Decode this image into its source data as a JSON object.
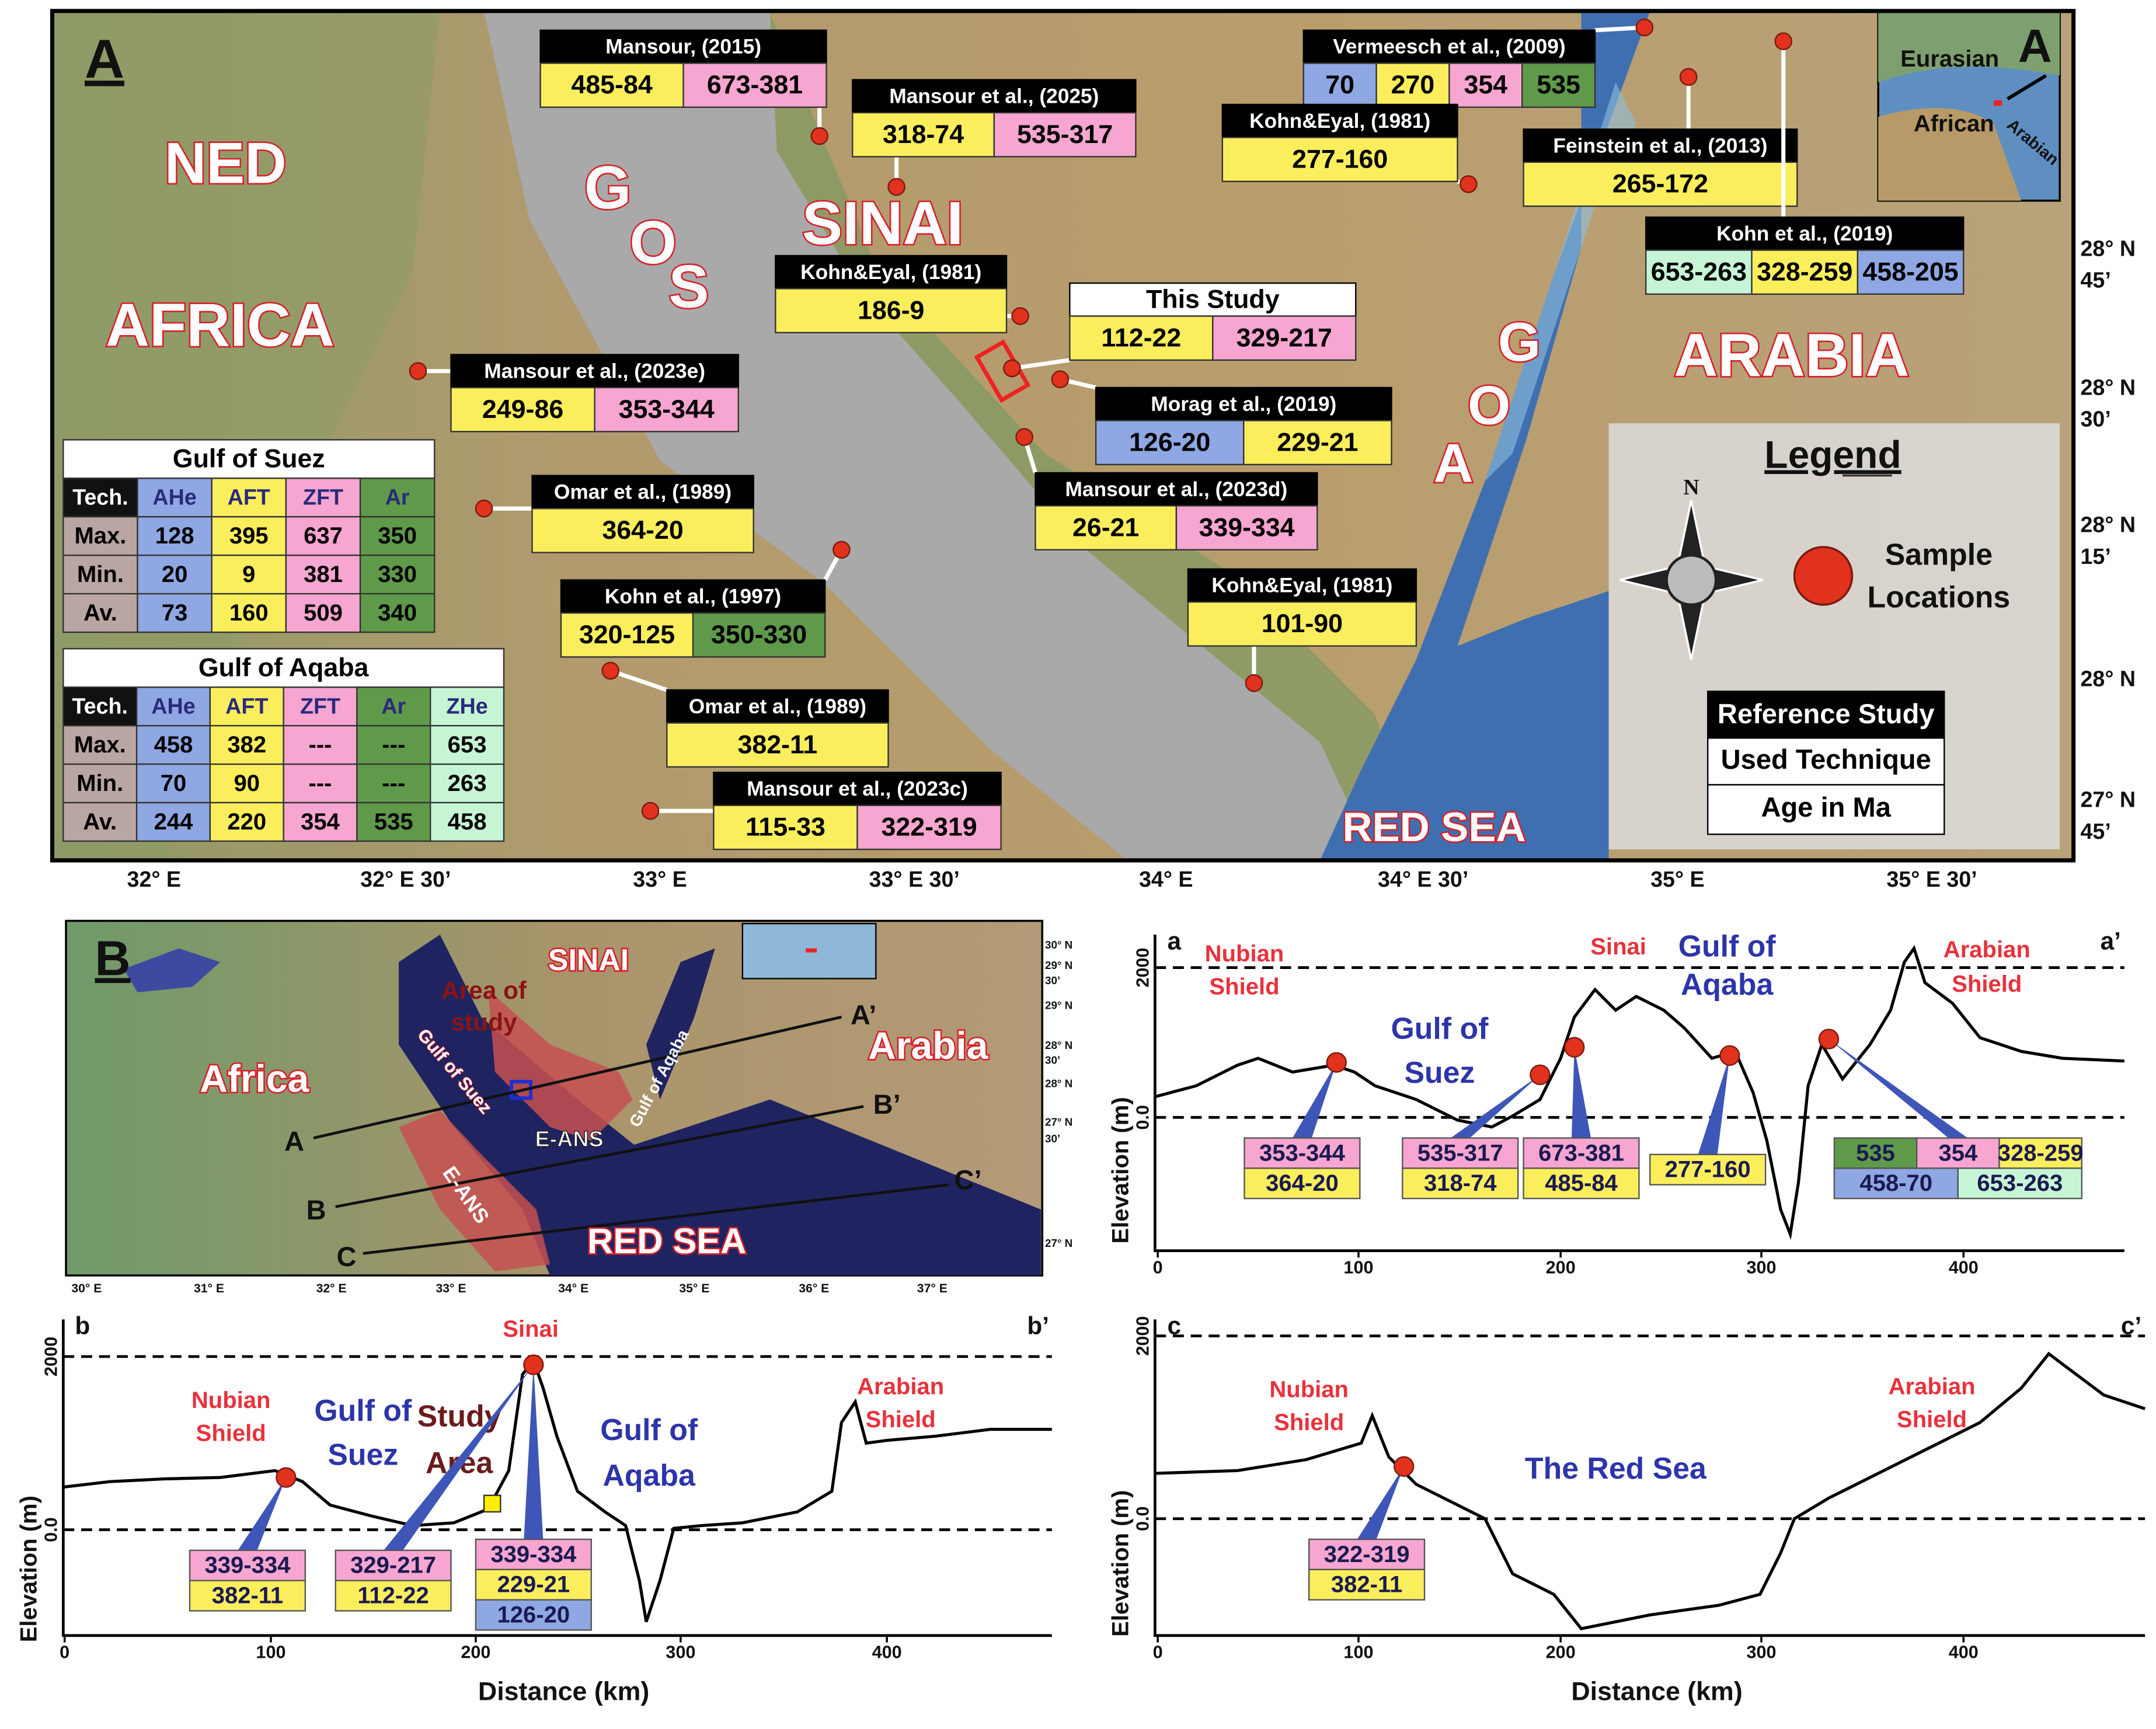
{
  "panel_a": {
    "label": "A",
    "regions": [
      "NED",
      "AFRICA",
      "SINAI",
      "ARABIA",
      "RED SEA"
    ],
    "gos": [
      "G",
      "O",
      "S"
    ],
    "aog": [
      "A",
      "O",
      "G"
    ],
    "callouts": [
      {
        "ref": "Mansour, (2015)",
        "ages": [
          {
            "text": "485-84",
            "color": "#fbee5d"
          },
          {
            "text": "673-381",
            "color": "#f6a6d0"
          }
        ]
      },
      {
        "ref": "Mansour et al., (2025)",
        "ages": [
          {
            "text": "318-74",
            "color": "#fbee5d"
          },
          {
            "text": "535-317",
            "color": "#f6a6d0"
          }
        ]
      },
      {
        "ref": "Vermeesch et al., (2009)",
        "ages": [
          {
            "text": "70",
            "color": "#8fa7e2"
          },
          {
            "text": "270",
            "color": "#fbee5d"
          },
          {
            "text": "354",
            "color": "#f6a6d0"
          },
          {
            "text": "535",
            "color": "#5f9a4a"
          }
        ]
      },
      {
        "ref": "Kohn&Eyal, (1981)",
        "ages": [
          {
            "text": "277-160",
            "color": "#fbee5d"
          }
        ]
      },
      {
        "ref": "Feinstein et al., (2013)",
        "ages": [
          {
            "text": "265-172",
            "color": "#fbee5d"
          }
        ]
      },
      {
        "ref": "Kohn et al., (2019)",
        "ages": [
          {
            "text": "653-263",
            "color": "#c6f5d6"
          },
          {
            "text": "328-259",
            "color": "#fbee5d"
          },
          {
            "text": "458-205",
            "color": "#8fa7e2"
          }
        ]
      },
      {
        "ref": "Kohn&Eyal, (1981)",
        "ages": [
          {
            "text": "186-9",
            "color": "#fbee5d"
          }
        ]
      },
      {
        "ref": "This Study",
        "ages": [
          {
            "text": "112-22",
            "color": "#fbee5d"
          },
          {
            "text": "329-217",
            "color": "#f6a6d0"
          }
        ]
      },
      {
        "ref": "Mansour et al., (2023e)",
        "ages": [
          {
            "text": "249-86",
            "color": "#fbee5d"
          },
          {
            "text": "353-344",
            "color": "#f6a6d0"
          }
        ]
      },
      {
        "ref": "Morag et al., (2019)",
        "ages": [
          {
            "text": "126-20",
            "color": "#8fa7e2"
          },
          {
            "text": "229-21",
            "color": "#fbee5d"
          }
        ]
      },
      {
        "ref": "Omar et al., (1989)",
        "ages": [
          {
            "text": "364-20",
            "color": "#fbee5d"
          }
        ]
      },
      {
        "ref": "Mansour et al., (2023d)",
        "ages": [
          {
            "text": "26-21",
            "color": "#fbee5d"
          },
          {
            "text": "339-334",
            "color": "#f6a6d0"
          }
        ]
      },
      {
        "ref": "Kohn et al., (1997)",
        "ages": [
          {
            "text": "320-125",
            "color": "#fbee5d"
          },
          {
            "text": "350-330",
            "color": "#5f9a4a"
          }
        ]
      },
      {
        "ref": "Kohn&Eyal, (1981)",
        "ages": [
          {
            "text": "101-90",
            "color": "#fbee5d"
          }
        ]
      },
      {
        "ref": "Omar et al., (1989)",
        "ages": [
          {
            "text": "382-11",
            "color": "#fbee5d"
          }
        ]
      },
      {
        "ref": "Mansour et al., (2023c)",
        "ages": [
          {
            "text": "115-33",
            "color": "#fbee5d"
          },
          {
            "text": "322-319",
            "color": "#f6a6d0"
          }
        ]
      }
    ],
    "tables": [
      {
        "title": "Gulf of Suez",
        "columns": [
          "Tech.",
          "AHe",
          "AFT",
          "ZFT",
          "Ar"
        ],
        "column_colors": [
          "#b9a6a2",
          "#8fa7e2",
          "#fbee5d",
          "#f6a6d0",
          "#5f9a4a"
        ],
        "rows": [
          [
            "Max.",
            "128",
            "395",
            "637",
            "350"
          ],
          [
            "Min.",
            "20",
            "9",
            "381",
            "330"
          ],
          [
            "Av.",
            "73",
            "160",
            "509",
            "340"
          ]
        ]
      },
      {
        "title": "Gulf of Aqaba",
        "columns": [
          "Tech.",
          "AHe",
          "AFT",
          "ZFT",
          "Ar",
          "ZHe"
        ],
        "column_colors": [
          "#b9a6a2",
          "#8fa7e2",
          "#fbee5d",
          "#f6a6d0",
          "#5f9a4a",
          "#c6f5d6"
        ],
        "rows": [
          [
            "Max.",
            "458",
            "382",
            "---",
            "---",
            "653"
          ],
          [
            "Min.",
            "70",
            "90",
            "---",
            "---",
            "263"
          ],
          [
            "Av.",
            "244",
            "220",
            "354",
            "535",
            "458"
          ]
        ]
      }
    ],
    "legend": {
      "title": "Legend",
      "north": "N",
      "sample": [
        "Sample",
        "Locations"
      ],
      "key": [
        "Reference Study",
        "Used Technique",
        "Age in Ma"
      ]
    },
    "inset": {
      "label": "A",
      "plates": [
        "Eurasian",
        "African",
        "Arabian"
      ]
    },
    "latitudes": [
      "28° N",
      "45’",
      "28° N",
      "30’",
      "28° N",
      "15’",
      "28° N",
      "27° N",
      "45’"
    ],
    "longitudes": [
      "32° E",
      "32° E 30’",
      "33° E",
      "33° E 30’",
      "34° E",
      "34° E 30’",
      "35° E",
      "35° E 30’"
    ]
  },
  "panel_b": {
    "label": "B",
    "labels": [
      "SINAI",
      "Area of",
      "study",
      "Africa",
      "Arabia",
      "Gulf of Suez",
      "Gulf of Aqaba",
      "E-ANS",
      "E-ANS",
      "RED SEA"
    ],
    "section_ends": [
      "A",
      "A’",
      "B",
      "B’",
      "C",
      "C’"
    ],
    "longitudes": [
      "30° E",
      "31° E",
      "32° E",
      "33° E",
      "34° E",
      "35° E",
      "36° E",
      "37° E"
    ],
    "latitudes": [
      "30° N",
      "29° N",
      "30’",
      "29° N",
      "28° N",
      "30’",
      "28° N",
      "27° N",
      "30’",
      "27° N"
    ]
  },
  "profiles": [
    {
      "start": "a",
      "end": "a’",
      "y_label": "Elevation (m)",
      "yticks": [
        "2000",
        "0.0"
      ],
      "xticks": [
        "0",
        "100",
        "200",
        "300",
        "400"
      ],
      "annotations": [
        {
          "text": "Nubian",
          "color": "#e8323c"
        },
        {
          "text": "Shield",
          "color": "#e8323c"
        },
        {
          "text": "Gulf of",
          "color": "#2c35a8"
        },
        {
          "text": "Suez",
          "color": "#2c35a8"
        },
        {
          "text": "Sinai",
          "color": "#e8323c"
        },
        {
          "text": "Gulf of",
          "color": "#2c35a8"
        },
        {
          "text": "Aqaba",
          "color": "#2c35a8"
        },
        {
          "text": "Arabian",
          "color": "#e8323c"
        },
        {
          "text": "Shield",
          "color": "#e8323c"
        }
      ],
      "boxes": [
        [
          [
            {
              "text": "353-344",
              "color": "#f6a6d0"
            }
          ],
          [
            {
              "text": "364-20",
              "color": "#fbee5d"
            }
          ]
        ],
        [
          [
            {
              "text": "535-317",
              "color": "#f6a6d0"
            }
          ],
          [
            {
              "text": "318-74",
              "color": "#fbee5d"
            }
          ]
        ],
        [
          [
            {
              "text": "673-381",
              "color": "#f6a6d0"
            }
          ],
          [
            {
              "text": "485-84",
              "color": "#fbee5d"
            }
          ]
        ],
        [
          [
            {
              "text": "277-160",
              "color": "#fbee5d"
            }
          ]
        ],
        [
          [
            {
              "text": "535",
              "color": "#5f9a4a"
            },
            {
              "text": "354",
              "color": "#f6a6d0"
            },
            {
              "text": "328-259",
              "color": "#fbee5d"
            }
          ],
          [
            {
              "text": "458-70",
              "color": "#8fa7e2"
            },
            {
              "text": "653-263",
              "color": "#c6f5d6"
            }
          ]
        ]
      ]
    },
    {
      "start": "b",
      "end": "b’",
      "y_label": "Elevation (m)",
      "x_label": "Distance (km)",
      "yticks": [
        "2000",
        "0.0"
      ],
      "xticks": [
        "0",
        "100",
        "200",
        "300",
        "400"
      ],
      "annotations": [
        {
          "text": "Nubian",
          "color": "#e8323c"
        },
        {
          "text": "Shield",
          "color": "#e8323c"
        },
        {
          "text": "Gulf of",
          "color": "#2c35a8"
        },
        {
          "text": "Suez",
          "color": "#2c35a8"
        },
        {
          "text": "Study",
          "color": "#6b1b1b"
        },
        {
          "text": "Area",
          "color": "#6b1b1b"
        },
        {
          "text": "Sinai",
          "color": "#e8323c"
        },
        {
          "text": "Gulf of",
          "color": "#2c35a8"
        },
        {
          "text": "Aqaba",
          "color": "#2c35a8"
        },
        {
          "text": "Arabian",
          "color": "#e8323c"
        },
        {
          "text": "Shield",
          "color": "#e8323c"
        }
      ],
      "boxes": [
        [
          [
            {
              "text": "339-334",
              "color": "#f6a6d0"
            }
          ],
          [
            {
              "text": "382-11",
              "color": "#fbee5d"
            }
          ]
        ],
        [
          [
            {
              "text": "329-217",
              "color": "#f6a6d0"
            }
          ],
          [
            {
              "text": "112-22",
              "color": "#fbee5d"
            }
          ]
        ],
        [
          [
            {
              "text": "339-334",
              "color": "#f6a6d0"
            }
          ],
          [
            {
              "text": "229-21",
              "color": "#fbee5d"
            }
          ],
          [
            {
              "text": "126-20",
              "color": "#8fa7e2"
            }
          ]
        ]
      ]
    },
    {
      "start": "c",
      "end": "c’",
      "y_label": "Elevation (m)",
      "x_label": "Distance (km)",
      "yticks": [
        "2000",
        "0.0"
      ],
      "xticks": [
        "0",
        "100",
        "200",
        "300",
        "400"
      ],
      "annotations": [
        {
          "text": "Nubian",
          "color": "#e8323c"
        },
        {
          "text": "Shield",
          "color": "#e8323c"
        },
        {
          "text": "The Red Sea",
          "color": "#2c35a8"
        },
        {
          "text": "Arabian",
          "color": "#e8323c"
        },
        {
          "text": "Shield",
          "color": "#e8323c"
        }
      ],
      "boxes": [
        [
          [
            {
              "text": "322-319",
              "color": "#f6a6d0"
            }
          ],
          [
            {
              "text": "382-11",
              "color": "#fbee5d"
            }
          ]
        ]
      ]
    }
  ]
}
